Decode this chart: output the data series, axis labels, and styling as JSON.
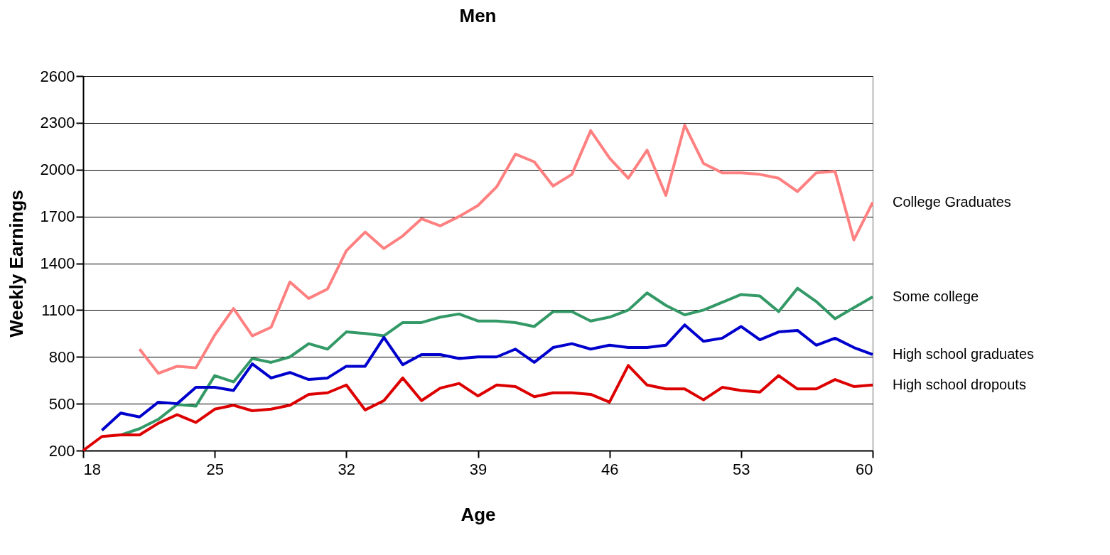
{
  "chart_data": {
    "type": "line",
    "title": "Men",
    "xlabel": "Age",
    "ylabel": "Weekly Earnings",
    "xlim": [
      18,
      60
    ],
    "xticks": [
      18,
      25,
      32,
      39,
      46,
      53,
      60
    ],
    "ylim": [
      200,
      2600
    ],
    "yticks": [
      200,
      500,
      800,
      1100,
      1400,
      1700,
      2000,
      2300,
      2600
    ],
    "grid": "y",
    "legend": false,
    "marker": "none",
    "line_style": "solid",
    "series": [
      {
        "name": "College Graduates",
        "color": "#ff8080",
        "x": [
          21,
          22,
          23,
          24,
          25,
          26,
          27,
          28,
          29,
          30,
          31,
          32,
          33,
          34,
          35,
          36,
          37,
          38,
          39,
          40,
          41,
          42,
          43,
          44,
          45,
          46,
          47,
          48,
          49,
          50,
          51,
          52,
          53,
          54,
          55,
          56,
          57,
          58,
          59,
          60
        ],
        "values": [
          850,
          695,
          740,
          730,
          940,
          1110,
          935,
          990,
          1280,
          1175,
          1235,
          1480,
          1600,
          1495,
          1575,
          1685,
          1640,
          1700,
          1770,
          1890,
          2100,
          2050,
          1895,
          1970,
          2250,
          2075,
          1945,
          2125,
          1835,
          2285,
          2040,
          1980,
          1980,
          1970,
          1945,
          1860,
          1980,
          1990,
          1550,
          1790
        ]
      },
      {
        "name": "Some college",
        "color": "#339966",
        "x": [
          20,
          21,
          22,
          23,
          24,
          25,
          26,
          27,
          28,
          29,
          30,
          31,
          32,
          33,
          34,
          35,
          36,
          37,
          38,
          39,
          40,
          41,
          42,
          43,
          44,
          45,
          46,
          47,
          48,
          49,
          50,
          51,
          52,
          53,
          54,
          55,
          56,
          57,
          58,
          59,
          60
        ],
        "values": [
          300,
          340,
          400,
          495,
          485,
          680,
          640,
          790,
          765,
          800,
          885,
          850,
          960,
          950,
          935,
          1020,
          1020,
          1055,
          1075,
          1030,
          1030,
          1020,
          995,
          1090,
          1090,
          1030,
          1055,
          1100,
          1210,
          1130,
          1070,
          1100,
          1150,
          1200,
          1190,
          1090,
          1240,
          1155,
          1045,
          1115,
          1185
        ]
      },
      {
        "name": "High school graduates",
        "color": "#0000cc",
        "x": [
          19,
          20,
          21,
          22,
          23,
          24,
          25,
          26,
          27,
          28,
          29,
          30,
          31,
          32,
          33,
          34,
          35,
          36,
          37,
          38,
          39,
          40,
          41,
          42,
          43,
          44,
          45,
          46,
          47,
          48,
          49,
          50,
          51,
          52,
          53,
          54,
          55,
          56,
          57,
          58,
          59,
          60
        ],
        "values": [
          330,
          440,
          415,
          510,
          500,
          605,
          605,
          585,
          755,
          665,
          700,
          655,
          665,
          740,
          740,
          925,
          750,
          815,
          815,
          790,
          800,
          800,
          850,
          765,
          860,
          885,
          850,
          875,
          860,
          860,
          875,
          1005,
          900,
          920,
          995,
          910,
          960,
          970,
          875,
          920,
          860,
          815
        ]
      },
      {
        "name": "High school dropouts",
        "color": "#dd0000",
        "x": [
          18,
          19,
          20,
          21,
          22,
          23,
          24,
          25,
          26,
          27,
          28,
          29,
          30,
          31,
          32,
          33,
          34,
          35,
          36,
          37,
          38,
          39,
          40,
          41,
          42,
          43,
          44,
          45,
          46,
          47,
          48,
          49,
          50,
          51,
          52,
          53,
          54,
          55,
          56,
          57,
          58,
          59,
          60
        ],
        "values": [
          200,
          290,
          300,
          300,
          375,
          430,
          380,
          465,
          490,
          455,
          465,
          490,
          560,
          570,
          620,
          460,
          520,
          665,
          520,
          600,
          630,
          550,
          620,
          610,
          545,
          570,
          570,
          560,
          510,
          745,
          620,
          595,
          595,
          525,
          605,
          585,
          575,
          680,
          595,
          595,
          655,
          610,
          620
        ]
      }
    ]
  }
}
